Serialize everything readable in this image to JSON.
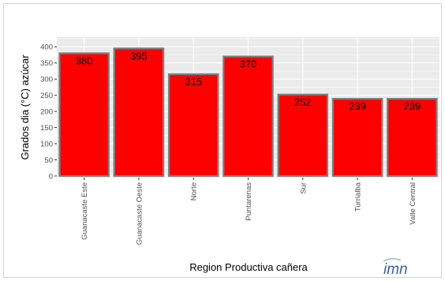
{
  "chart_data": {
    "type": "bar",
    "title": "",
    "xlabel": "Region Productiva cañera",
    "ylabel": "Grados dia (°C) azúcar",
    "categories": [
      "Guanacaste Este",
      "Guanacaste Oeste",
      "Norte",
      "Puntarenas",
      "Sur",
      "Turrialba",
      "Valle Central"
    ],
    "values": [
      380,
      395,
      315,
      370,
      252,
      239,
      239
    ],
    "data_labels": [
      "380",
      "395",
      "315",
      "370",
      "252",
      "239",
      "239"
    ],
    "ylim": [
      -5,
      430
    ],
    "yticks": [
      0,
      50,
      100,
      150,
      200,
      250,
      300,
      350,
      400
    ],
    "grid": true,
    "legend": "none",
    "colors": {
      "bar_fill": "#ff0000",
      "bar_outline": "#7f7f7f",
      "panel_background": "#ebebeb",
      "grid": "#ffffff"
    }
  },
  "logo": {
    "text": "imn",
    "color": "#3a5fa8"
  }
}
